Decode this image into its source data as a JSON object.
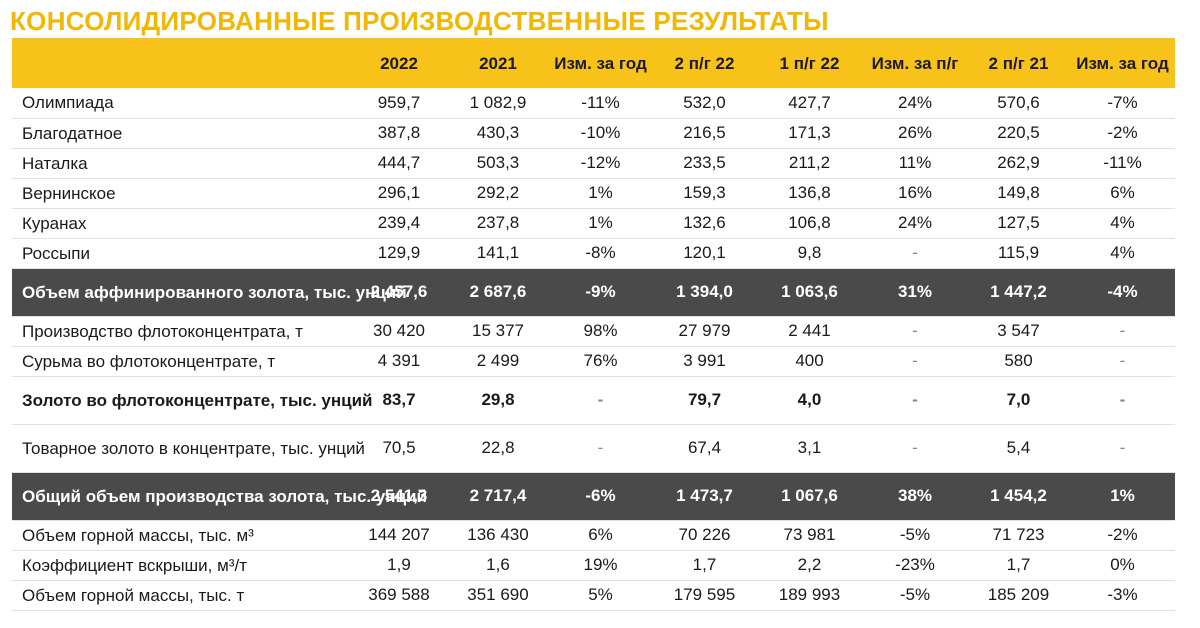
{
  "title": "КОНСОЛИДИРОВАННЫЕ ПРОИЗВОДСТВЕННЫЕ РЕЗУЛЬТАТЫ",
  "header": [
    "",
    "2022",
    "2021",
    "Изм. за год",
    "2 п/г 22",
    "1 п/г 22",
    "Изм. за п/г",
    "2 п/г 21",
    "Изм. за год"
  ],
  "rows": [
    {
      "label": "Олимпиада",
      "values": [
        "959,7",
        "1 082,9",
        "-11%",
        "532,0",
        "427,7",
        "24%",
        "570,6",
        "-7%"
      ]
    },
    {
      "label": "Благодатное",
      "values": [
        "387,8",
        "430,3",
        "-10%",
        "216,5",
        "171,3",
        "26%",
        "220,5",
        "-2%"
      ]
    },
    {
      "label": "Наталка",
      "values": [
        "444,7",
        "503,3",
        "-12%",
        "233,5",
        "211,2",
        "11%",
        "262,9",
        "-11%"
      ]
    },
    {
      "label": "Вернинское",
      "values": [
        "296,1",
        "292,2",
        "1%",
        "159,3",
        "136,8",
        "16%",
        "149,8",
        "6%"
      ]
    },
    {
      "label": "Куранах",
      "values": [
        "239,4",
        "237,8",
        "1%",
        "132,6",
        "106,8",
        "24%",
        "127,5",
        "4%"
      ]
    },
    {
      "label": "Россыпи",
      "values": [
        "129,9",
        "141,1",
        "-8%",
        "120,1",
        "9,8",
        "-",
        "115,9",
        "4%"
      ]
    },
    {
      "label": "Объем аффинированного золота, тыс. унций",
      "values": [
        "2 457,6",
        "2 687,6",
        "-9%",
        "1 394,0",
        "1 063,6",
        "31%",
        "1 447,2",
        "-4%"
      ]
    },
    {
      "label": "Производство флотоконцентрата, т",
      "values": [
        "30 420",
        "15 377",
        "98%",
        "27 979",
        "2 441",
        "-",
        "3 547",
        "-"
      ]
    },
    {
      "label": "Сурьма во флотоконцентрате, т",
      "values": [
        "4 391",
        "2 499",
        "76%",
        "3 991",
        "400",
        "-",
        "580",
        "-"
      ]
    },
    {
      "label": "Золото во флотоконцентрате, тыс. унций",
      "values": [
        "83,7",
        "29,8",
        "-",
        "79,7",
        "4,0",
        "-",
        "7,0",
        "-"
      ]
    },
    {
      "label": "Товарное золото в концентрате, тыс. унций",
      "values": [
        "70,5",
        "22,8",
        "-",
        "67,4",
        "3,1",
        "-",
        "5,4",
        "-"
      ]
    },
    {
      "label": "Общий объем производства золота, тыс. унций",
      "values": [
        "2 541,3",
        "2 717,4",
        "-6%",
        "1 473,7",
        "1 067,6",
        "38%",
        "1 454,2",
        "1%"
      ]
    },
    {
      "label": "Объем горной массы, тыс. м³",
      "values": [
        "144 207",
        "136 430",
        "6%",
        "70 226",
        "73 981",
        "-5%",
        "71 723",
        "-2%"
      ]
    },
    {
      "label": "Коэффициент вскрыши, м³/т",
      "values": [
        "1,9",
        "1,6",
        "19%",
        "1,7",
        "2,2",
        "-23%",
        "1,7",
        "0%"
      ]
    },
    {
      "label": "Объем горной массы, тыс. т",
      "values": [
        "369 588",
        "351 690",
        "5%",
        "179 595",
        "189 993",
        "-5%",
        "185 209",
        "-3%"
      ]
    }
  ]
}
